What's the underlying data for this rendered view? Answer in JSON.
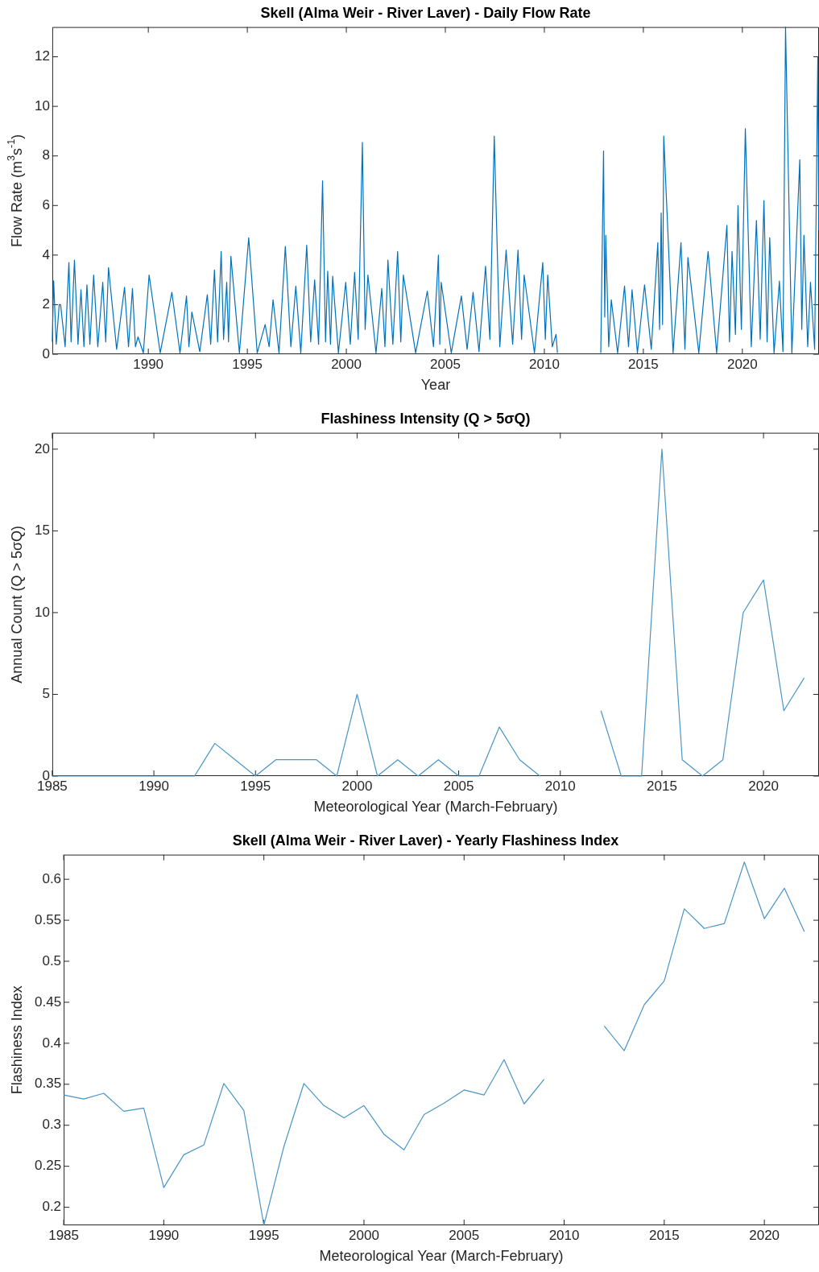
{
  "chart_data": [
    {
      "type": "line",
      "title": "Skell (Alma Weir - River Laver) - Daily Flow Rate",
      "xlabel": "Year",
      "ylabel": "Flow Rate (m$^{3}$s$^{-1}$)",
      "color": "#0072bd",
      "marker": "none",
      "line_style": "solid",
      "xlim": [
        1985.15,
        2023.87
      ],
      "xticks": [
        1990,
        1995,
        2000,
        2005,
        2010,
        2015,
        2020
      ],
      "ylim": [
        0,
        13.2
      ],
      "yticks": [
        0,
        2,
        4,
        6,
        8,
        10,
        12
      ],
      "x": [
        1985.15,
        1985.22,
        1985.35,
        1985.5,
        1985.57,
        1985.8,
        1985.99,
        1986.1,
        1986.27,
        1986.45,
        1986.6,
        1986.75,
        1986.9,
        1987.05,
        1987.24,
        1987.45,
        1987.7,
        1987.85,
        1987.99,
        1988.4,
        1988.8,
        1989.0,
        1989.2,
        1989.35,
        1989.48,
        1989.75,
        1990.04,
        1990.6,
        1991.19,
        1991.6,
        1991.93,
        1992.05,
        1992.2,
        1992.6,
        1992.98,
        1993.15,
        1993.34,
        1993.5,
        1993.68,
        1993.8,
        1993.96,
        1994.05,
        1994.17,
        1994.6,
        1995.07,
        1995.5,
        1995.9,
        1996.1,
        1996.3,
        1996.6,
        1996.92,
        1997.2,
        1997.45,
        1997.7,
        1998.0,
        1998.2,
        1998.4,
        1998.6,
        1998.8,
        1998.95,
        1999.06,
        1999.2,
        1999.31,
        1999.6,
        1999.97,
        2000.2,
        2000.42,
        2000.6,
        2000.81,
        2000.95,
        2001.09,
        2001.5,
        2001.79,
        2001.95,
        2002.1,
        2002.35,
        2002.59,
        2002.75,
        2002.88,
        2003.5,
        2004.09,
        2004.4,
        2004.65,
        2004.72,
        2004.79,
        2005.3,
        2005.81,
        2006.1,
        2006.4,
        2006.7,
        2007.03,
        2007.25,
        2007.47,
        2007.75,
        2008.07,
        2008.4,
        2008.67,
        2008.85,
        2008.98,
        2009.5,
        2009.92,
        2010.05,
        2010.17,
        2010.4,
        2010.59,
        2010.66,
        2011.8,
        2012.85,
        2012.99,
        2013.05,
        2013.1,
        2013.25,
        2013.38,
        2013.7,
        2014.05,
        2014.25,
        2014.43,
        2014.7,
        2015.06,
        2015.4,
        2015.73,
        2015.82,
        2015.9,
        2015.97,
        2016.03,
        2016.5,
        2016.9,
        2017.1,
        2017.25,
        2017.8,
        2018.27,
        2018.7,
        2019.22,
        2019.35,
        2019.48,
        2019.65,
        2019.78,
        2019.95,
        2020.15,
        2020.45,
        2020.71,
        2020.9,
        2021.09,
        2021.25,
        2021.38,
        2021.6,
        2021.87,
        2022.05,
        2022.18,
        2022.5,
        2022.9,
        2023.0,
        2023.11,
        2023.3,
        2023.44,
        2023.65,
        2023.81,
        2023.86
      ],
      "values": [
        0.5,
        2.96,
        0.4,
        2.0,
        2.0,
        0.3,
        3.7,
        0.5,
        3.8,
        0.4,
        2.6,
        0.3,
        2.8,
        0.4,
        3.2,
        0.3,
        2.9,
        0.5,
        3.5,
        0.2,
        2.7,
        0.3,
        2.65,
        0.3,
        0.7,
        0.05,
        3.2,
        0.05,
        2.5,
        0.05,
        2.35,
        0.3,
        1.7,
        0.1,
        2.4,
        0.4,
        3.4,
        0.5,
        4.15,
        0.6,
        2.9,
        0.5,
        3.95,
        0.05,
        4.7,
        0.05,
        1.2,
        0.3,
        2.2,
        0.05,
        4.35,
        0.3,
        2.75,
        0.05,
        4.4,
        0.5,
        3.0,
        0.4,
        7.0,
        0.5,
        3.35,
        0.4,
        3.15,
        0.05,
        2.9,
        0.4,
        3.3,
        0.6,
        8.55,
        1.0,
        3.2,
        0.05,
        2.65,
        0.3,
        3.8,
        0.4,
        4.15,
        0.5,
        3.2,
        0.05,
        2.55,
        0.3,
        4.0,
        0.4,
        2.9,
        0.05,
        2.35,
        0.2,
        2.5,
        0.1,
        3.55,
        0.6,
        8.8,
        0.3,
        4.2,
        0.4,
        4.2,
        0.6,
        3.2,
        0.05,
        3.7,
        0.6,
        3.2,
        0.3,
        0.8,
        0.05,
        null,
        0.05,
        8.2,
        1.5,
        4.8,
        0.3,
        2.2,
        0.05,
        2.75,
        0.3,
        2.6,
        0.05,
        2.8,
        0.2,
        4.5,
        1.0,
        5.7,
        1.2,
        8.8,
        0.05,
        4.5,
        0.2,
        3.9,
        0.05,
        4.15,
        0.05,
        5.2,
        0.5,
        4.15,
        0.8,
        6.0,
        1.0,
        9.1,
        0.3,
        5.4,
        0.6,
        6.2,
        0.5,
        4.7,
        0.05,
        2.95,
        0.1,
        13.2,
        0.05,
        7.85,
        1.0,
        4.8,
        0.3,
        2.9,
        0.2,
        12.0,
        5.0
      ]
    },
    {
      "type": "line",
      "title": "Flashiness Intensity (Q > 5σQ)",
      "xlabel": "Meteorological Year (March-February)",
      "ylabel": "Annual Count (Q > 5σQ)",
      "color": "#4a95c6",
      "marker": "none",
      "line_style": "solid",
      "xlim": [
        1985,
        2022.73
      ],
      "xticks": [
        1985,
        1990,
        1995,
        2000,
        2005,
        2010,
        2015,
        2020
      ],
      "ylim": [
        0,
        21
      ],
      "yticks": [
        0,
        5,
        10,
        15,
        20
      ],
      "x": [
        1985,
        1986,
        1987,
        1988,
        1989,
        1990,
        1991,
        1992,
        1993,
        1994,
        1995,
        1996,
        1997,
        1998,
        1999,
        2000,
        2001,
        2002,
        2003,
        2004,
        2005,
        2006,
        2007,
        2008,
        2009,
        2010,
        2011,
        2012,
        2013,
        2014,
        2015,
        2016,
        2017,
        2018,
        2019,
        2020,
        2021,
        2022
      ],
      "values": [
        0,
        0,
        0,
        0,
        0,
        0,
        0,
        0,
        2,
        1,
        0,
        1,
        1,
        1,
        0,
        5,
        0,
        1,
        0,
        1,
        0,
        0,
        3,
        1,
        0,
        null,
        null,
        4,
        0,
        0,
        20,
        1,
        0,
        1,
        10,
        12,
        4,
        6
      ]
    },
    {
      "type": "line",
      "title": "Skell (Alma Weir - River Laver) - Yearly Flashiness Index",
      "xlabel": "Meteorological Year (March-February)",
      "ylabel": "Flashiness Index",
      "color": "#4a95c6",
      "marker": "none",
      "line_style": "solid",
      "xlim": [
        1985,
        2022.73
      ],
      "xticks": [
        1985,
        1990,
        1995,
        2000,
        2005,
        2010,
        2015,
        2020
      ],
      "ylim": [
        0.178,
        0.63
      ],
      "yticks": [
        0.2,
        0.25,
        0.3,
        0.35,
        0.4,
        0.45,
        0.5,
        0.55,
        0.6
      ],
      "x": [
        1985,
        1986,
        1987,
        1988,
        1989,
        1990,
        1991,
        1992,
        1993,
        1994,
        1995,
        1996,
        1997,
        1998,
        1999,
        2000,
        2001,
        2002,
        2003,
        2004,
        2005,
        2006,
        2007,
        2008,
        2009,
        2010,
        2011,
        2012,
        2013,
        2014,
        2015,
        2016,
        2017,
        2018,
        2019,
        2020,
        2021,
        2022
      ],
      "values": [
        0.337,
        0.332,
        0.339,
        0.317,
        0.321,
        0.224,
        0.264,
        0.276,
        0.351,
        0.318,
        0.178,
        0.274,
        0.351,
        0.324,
        0.309,
        0.324,
        0.289,
        0.27,
        0.313,
        0.327,
        0.343,
        0.337,
        0.38,
        0.326,
        0.356,
        null,
        null,
        0.421,
        0.391,
        0.447,
        0.476,
        0.564,
        0.54,
        0.546,
        0.621,
        0.552,
        0.589,
        0.536
      ]
    }
  ]
}
